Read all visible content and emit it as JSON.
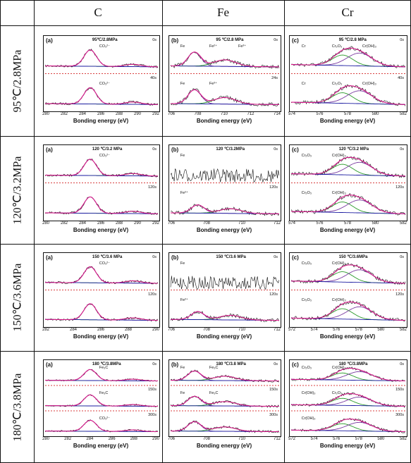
{
  "columns": [
    "C",
    "Fe",
    "Cr"
  ],
  "rows": [
    "95℃/2.8MPa",
    "120℃/3.2MPa",
    "150℃/3.6MPa",
    "180℃/3.8MPa"
  ],
  "xlabel": "Bonding energy (eV)",
  "colors": {
    "measured": "#111111",
    "fit": "#d81b8a",
    "bg": "#1a1aa0",
    "comp1": "#2a9a2a",
    "comp2": "#7a3aa0",
    "sep": "#cc0000"
  },
  "panels": [
    {
      "id": "r0-C",
      "label": "(a)",
      "cond": "95℃/2.8MPa",
      "times": [
        "0s",
        "40s"
      ],
      "ticks": [
        "280",
        "282",
        "284",
        "286",
        "288",
        "290",
        "292"
      ],
      "annotations": [
        "CO₃²⁻",
        "CO₃²⁻"
      ]
    },
    {
      "id": "r0-Fe",
      "label": "(b)",
      "cond": "95 ℃/2.8 MPa",
      "times": [
        "0s",
        "24s"
      ],
      "ticks": [
        "706",
        "708",
        "710",
        "712",
        "714"
      ],
      "annotations": [
        "Fe",
        "Fe²⁺",
        "Fe³⁺",
        "Fe",
        "Fe³⁺"
      ]
    },
    {
      "id": "r0-Cr",
      "label": "(c)",
      "cond": "95 ℃/2.8 MPa",
      "times": [
        "0s",
        "40s"
      ],
      "ticks": [
        "574",
        "576",
        "578",
        "580",
        "582"
      ],
      "annotations": [
        "Cr",
        "Cr₂O₃",
        "Cr(OH)₃",
        "Cr",
        "Cr₂O₃",
        "Cr(OH)₃"
      ]
    },
    {
      "id": "r1-C",
      "label": "(a)",
      "cond": "120 ℃/3.2 MPa",
      "times": [
        "0s",
        "120s"
      ],
      "ticks": [
        "280",
        "282",
        "284",
        "286",
        "288",
        "290",
        "292"
      ],
      "annotations": [
        "CO₃²⁻"
      ]
    },
    {
      "id": "r1-Fe",
      "label": "(b)",
      "cond": "120 ℃/3.2MPa",
      "times": [
        "0s",
        "120s"
      ],
      "ticks": [
        "706",
        "708",
        "710",
        "712"
      ],
      "annotations": [
        "Fe",
        "Fe²⁺"
      ]
    },
    {
      "id": "r1-Cr",
      "label": "(c)",
      "cond": "120 ℃/3.2 MPa",
      "times": [
        "0s",
        "120s"
      ],
      "ticks": [
        "574",
        "576",
        "578",
        "580",
        "582"
      ],
      "annotations": [
        "Cr₂O₃",
        "Cr(OH)₃",
        "Cr₂O₃",
        "Cr(OH)₃"
      ]
    },
    {
      "id": "r2-C",
      "label": "(a)",
      "cond": "150 ℃/3.6 MPa",
      "times": [
        "0s",
        "120s"
      ],
      "ticks": [
        "282",
        "284",
        "286",
        "288",
        "290"
      ],
      "annotations": [
        "CO₃²⁻"
      ]
    },
    {
      "id": "r2-Fe",
      "label": "(b)",
      "cond": "150 ℃/3.6 MPa",
      "times": [
        "0s",
        "120s"
      ],
      "ticks": [
        "706",
        "708",
        "710",
        "712"
      ],
      "annotations": [
        "Fe",
        "Fe²⁺"
      ]
    },
    {
      "id": "r2-Cr",
      "label": "(c)",
      "cond": "150 ℃/3.6MPa",
      "times": [
        "0s",
        "120s"
      ],
      "ticks": [
        "572",
        "574",
        "576",
        "578",
        "580",
        "582"
      ],
      "annotations": [
        "Cr₂O₃",
        "Cr(OH)₃",
        "Cr₂O₃",
        "Cr(OH)₃"
      ]
    },
    {
      "id": "r3-C",
      "label": "(a)",
      "cond": "180 ℃/3.8MPa",
      "times": [
        "0s",
        "150s",
        "300s"
      ],
      "ticks": [
        "280",
        "282",
        "284",
        "286",
        "288",
        "290"
      ],
      "annotations": [
        "Fe₃C",
        "Fe₃C",
        "CO₃²⁻"
      ]
    },
    {
      "id": "r3-Fe",
      "label": "(b)",
      "cond": "180 ℃/3.8 MPa",
      "times": [
        "0s",
        "150s",
        "300s"
      ],
      "ticks": [
        "706",
        "708",
        "710",
        "712"
      ],
      "annotations": [
        "Fe",
        "Fe₃C",
        "Fe",
        "Fe₃C"
      ]
    },
    {
      "id": "r3-Cr",
      "label": "(c)",
      "cond": "180 ℃/3.8MPa",
      "times": [
        "0s",
        "150s",
        "300s"
      ],
      "ticks": [
        "572",
        "574",
        "576",
        "578",
        "580",
        "582"
      ],
      "annotations": [
        "Cr₂O₃",
        "Cr(OH)₃",
        "Cr(OH)₃",
        "Cr₂O₃",
        "Cr(OH)₃"
      ]
    }
  ],
  "chart_data": [
    {
      "type": "line",
      "panel": "r0-C",
      "xlim": [
        280,
        292
      ],
      "peaks_eV": [
        284.6,
        289.2
      ]
    },
    {
      "type": "line",
      "panel": "r0-Fe",
      "xlim": [
        706,
        715
      ],
      "peaks_eV": [
        707.0,
        709.5,
        711.0
      ]
    },
    {
      "type": "line",
      "panel": "r0-Cr",
      "xlim": [
        573,
        582
      ],
      "peaks_eV": [
        574.3,
        576.5,
        577.5
      ]
    },
    {
      "type": "line",
      "panel": "r1-C",
      "xlim": [
        280,
        292
      ],
      "peaks_eV": [
        284.6,
        289.0
      ]
    },
    {
      "type": "line",
      "panel": "r1-Fe",
      "xlim": [
        705.5,
        713
      ],
      "peaks_eV": [
        707.0,
        709.8
      ]
    },
    {
      "type": "line",
      "panel": "r1-Cr",
      "xlim": [
        573,
        582
      ],
      "peaks_eV": [
        576.0,
        577.4
      ]
    },
    {
      "type": "line",
      "panel": "r2-C",
      "xlim": [
        281,
        291
      ],
      "peaks_eV": [
        284.6,
        289.0
      ]
    },
    {
      "type": "line",
      "panel": "r2-Fe",
      "xlim": [
        705.5,
        713
      ],
      "peaks_eV": [
        707.0,
        709.8
      ]
    },
    {
      "type": "line",
      "panel": "r2-Cr",
      "xlim": [
        572,
        582
      ],
      "peaks_eV": [
        576.4,
        577.4
      ]
    },
    {
      "type": "line",
      "panel": "r3-C",
      "xlim": [
        280,
        291
      ],
      "peaks_eV": [
        283.0,
        284.6,
        289.0
      ]
    },
    {
      "type": "line",
      "panel": "r3-Fe",
      "xlim": [
        705.5,
        713
      ],
      "peaks_eV": [
        706.9,
        709.0
      ]
    },
    {
      "type": "line",
      "panel": "r3-Cr",
      "xlim": [
        572,
        582
      ],
      "peaks_eV": [
        576.3,
        577.4
      ]
    }
  ]
}
